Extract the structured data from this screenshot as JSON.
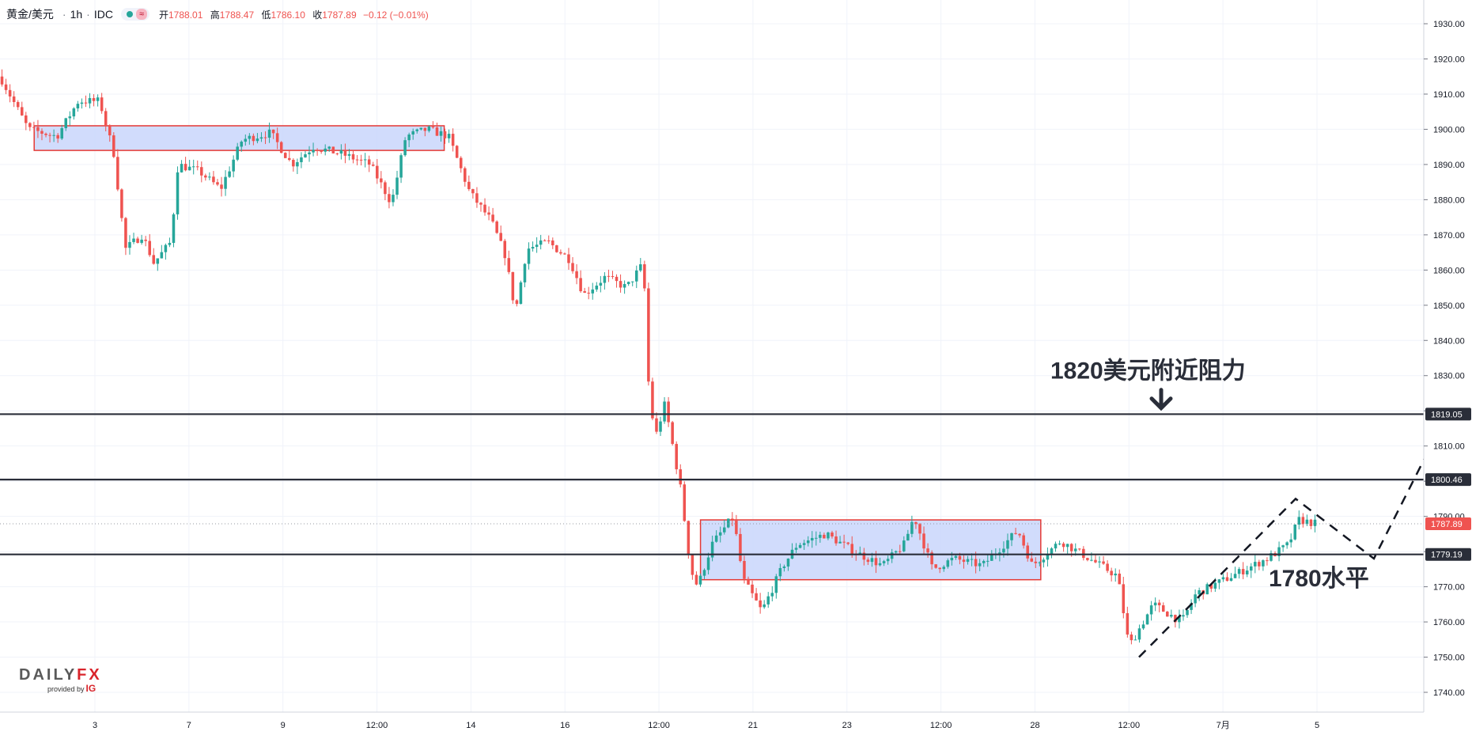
{
  "header": {
    "symbol": "黄金/美元",
    "interval": "1h",
    "source": "IDC",
    "open_label": "开",
    "open": "1788.01",
    "high_label": "高",
    "high": "1788.47",
    "low_label": "低",
    "low": "1786.10",
    "close_label": "收",
    "close": "1787.89",
    "change": "−0.12 (−0.01%)"
  },
  "logo": {
    "brand_a": "DAILY",
    "brand_b": "FX",
    "provided_by": "provided by",
    "ig": "IG"
  },
  "colors": {
    "up": "#26a69a",
    "down": "#ef5350",
    "zone_fill": "#c9d6fb",
    "zone_border": "#e53935",
    "level_line": "#2a2e39",
    "price_tag_dark": "#2a2e39",
    "price_tag_last": "#ef5350"
  },
  "chart_data": {
    "type": "candlestick",
    "symbol": "黄金/美元",
    "interval": "1h",
    "ylim": [
      1735,
      1935
    ],
    "y_ticks": [
      1740,
      1750,
      1760,
      1770,
      1780,
      1790,
      1800,
      1810,
      1820,
      1830,
      1840,
      1850,
      1860,
      1870,
      1880,
      1890,
      1900,
      1910,
      1920,
      1930
    ],
    "x_ticks": [
      "3",
      "7",
      "9",
      "12:00",
      "14",
      "16",
      "12:00",
      "21",
      "23",
      "12:00",
      "28",
      "12:00",
      "7月",
      "5"
    ],
    "price_path": [
      [
        0,
        1915
      ],
      [
        0.02,
        1900
      ],
      [
        0.04,
        1898
      ],
      [
        0.055,
        1908
      ],
      [
        0.07,
        1908
      ],
      [
        0.08,
        1893
      ],
      [
        0.088,
        1866
      ],
      [
        0.1,
        1870
      ],
      [
        0.108,
        1862
      ],
      [
        0.12,
        1868
      ],
      [
        0.125,
        1890
      ],
      [
        0.14,
        1888
      ],
      [
        0.155,
        1883
      ],
      [
        0.17,
        1897
      ],
      [
        0.19,
        1899
      ],
      [
        0.205,
        1890
      ],
      [
        0.22,
        1895
      ],
      [
        0.24,
        1893
      ],
      [
        0.26,
        1890
      ],
      [
        0.275,
        1879
      ],
      [
        0.285,
        1898
      ],
      [
        0.3,
        1900
      ],
      [
        0.315,
        1898
      ],
      [
        0.33,
        1882
      ],
      [
        0.345,
        1874
      ],
      [
        0.355,
        1864
      ],
      [
        0.362,
        1848
      ],
      [
        0.37,
        1866
      ],
      [
        0.385,
        1868
      ],
      [
        0.4,
        1863
      ],
      [
        0.41,
        1853
      ],
      [
        0.425,
        1858
      ],
      [
        0.44,
        1855
      ],
      [
        0.452,
        1862
      ],
      [
        0.455,
        1830
      ],
      [
        0.46,
        1812
      ],
      [
        0.467,
        1822
      ],
      [
        0.478,
        1798
      ],
      [
        0.485,
        1775
      ],
      [
        0.49,
        1770
      ],
      [
        0.5,
        1782
      ],
      [
        0.515,
        1790
      ],
      [
        0.522,
        1772
      ],
      [
        0.535,
        1763
      ],
      [
        0.55,
        1776
      ],
      [
        0.56,
        1782
      ],
      [
        0.58,
        1785
      ],
      [
        0.6,
        1780
      ],
      [
        0.62,
        1776
      ],
      [
        0.635,
        1782
      ],
      [
        0.642,
        1790
      ],
      [
        0.655,
        1775
      ],
      [
        0.67,
        1778
      ],
      [
        0.69,
        1776
      ],
      [
        0.715,
        1786
      ],
      [
        0.725,
        1776
      ],
      [
        0.745,
        1783
      ],
      [
        0.765,
        1778
      ],
      [
        0.785,
        1773
      ],
      [
        0.793,
        1753
      ],
      [
        0.81,
        1765
      ],
      [
        0.83,
        1760
      ],
      [
        0.84,
        1768
      ],
      [
        0.86,
        1772
      ],
      [
        0.875,
        1775
      ],
      [
        0.89,
        1778
      ],
      [
        0.905,
        1782
      ],
      [
        0.912,
        1789
      ],
      [
        0.925,
        1787.89
      ]
    ],
    "zones": [
      {
        "x_start": 0.024,
        "x_end": 0.312,
        "price_low": 1894,
        "price_high": 1901
      },
      {
        "x_start": 0.492,
        "x_end": 0.731,
        "price_low": 1772,
        "price_high": 1789
      }
    ],
    "levels": [
      {
        "price": 1819.05,
        "label": "1819.05",
        "x_start": 0,
        "x_end": 1
      },
      {
        "price": 1800.46,
        "label": "1800.46",
        "x_start": 0,
        "x_end": 1
      },
      {
        "price": 1779.19,
        "label": "1779.19",
        "x_start": 0,
        "x_end": 1
      }
    ],
    "last_price": {
      "price": 1787.89,
      "label": "1787.89"
    },
    "projection": [
      [
        0.8,
        1750
      ],
      [
        0.91,
        1795
      ],
      [
        0.965,
        1778
      ],
      [
        1.02,
        1822
      ]
    ],
    "annotations": [
      {
        "text": "1820美元附近阻力",
        "x": 0.785,
        "price": 1830,
        "arrow": true
      },
      {
        "text": "1780水平",
        "x": 0.98,
        "price": 1771
      }
    ]
  }
}
